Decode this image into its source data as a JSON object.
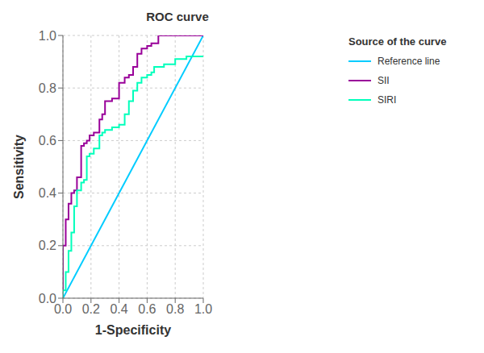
{
  "chart_data": {
    "type": "line",
    "title": "ROC curve",
    "xlabel": "1-Specificity",
    "ylabel": "Sensitivity",
    "legend_title": "Source of the curve",
    "legend": "right",
    "grid": true,
    "xlim": [
      0.0,
      1.0
    ],
    "ylim": [
      0.0,
      1.0
    ],
    "xticks": [
      {
        "value": 0,
        "label": "0.0"
      },
      0.2,
      0.4,
      0.6,
      0.8,
      {
        "value": 1,
        "label": "1.0"
      }
    ],
    "yticks": [
      {
        "value": 0,
        "label": "0.0"
      },
      0.2,
      0.4,
      0.6,
      0.8,
      {
        "value": 1,
        "label": "1.0"
      }
    ],
    "series": [
      {
        "name": "Reference line",
        "color": "#00CCFF",
        "x": [
          0,
          1
        ],
        "values": [
          0,
          1
        ]
      },
      {
        "name": "SII",
        "color": "#990099",
        "x": [
          0.0,
          0.0,
          0.02,
          0.02,
          0.04,
          0.04,
          0.06,
          0.06,
          0.08,
          0.08,
          0.1,
          0.1,
          0.13,
          0.13,
          0.15,
          0.15,
          0.17,
          0.17,
          0.19,
          0.19,
          0.22,
          0.22,
          0.26,
          0.26,
          0.28,
          0.28,
          0.3,
          0.3,
          0.35,
          0.35,
          0.4,
          0.4,
          0.44,
          0.44,
          0.47,
          0.47,
          0.5,
          0.5,
          0.53,
          0.53,
          0.56,
          0.56,
          0.6,
          0.6,
          0.63,
          0.63,
          0.68,
          0.68,
          0.72,
          0.72,
          0.85,
          0.85,
          0.88,
          0.88,
          1.0,
          1.0
        ],
        "values": [
          0.0,
          0.2,
          0.2,
          0.3,
          0.3,
          0.36,
          0.36,
          0.4,
          0.4,
          0.41,
          0.41,
          0.46,
          0.46,
          0.58,
          0.58,
          0.59,
          0.59,
          0.6,
          0.6,
          0.62,
          0.62,
          0.63,
          0.63,
          0.68,
          0.68,
          0.7,
          0.7,
          0.75,
          0.75,
          0.76,
          0.76,
          0.82,
          0.82,
          0.84,
          0.84,
          0.85,
          0.85,
          0.88,
          0.88,
          0.93,
          0.93,
          0.95,
          0.95,
          0.96,
          0.96,
          0.97,
          0.97,
          1.0,
          1.0,
          1.0,
          1.0,
          1.0,
          1.0,
          1.0,
          1.0,
          1.0
        ]
      },
      {
        "name": "SIRI",
        "color": "#00FFBB",
        "x": [
          0.0,
          0.0,
          0.02,
          0.02,
          0.04,
          0.04,
          0.06,
          0.06,
          0.08,
          0.08,
          0.1,
          0.1,
          0.13,
          0.13,
          0.15,
          0.15,
          0.17,
          0.17,
          0.19,
          0.19,
          0.22,
          0.22,
          0.26,
          0.26,
          0.28,
          0.28,
          0.3,
          0.3,
          0.35,
          0.35,
          0.4,
          0.4,
          0.44,
          0.44,
          0.47,
          0.47,
          0.5,
          0.5,
          0.53,
          0.53,
          0.56,
          0.56,
          0.6,
          0.6,
          0.63,
          0.63,
          0.65,
          0.65,
          0.68,
          0.68,
          0.72,
          0.72,
          0.8,
          0.8,
          0.85,
          0.85,
          0.88,
          0.88,
          1.0,
          1.0
        ],
        "values": [
          0.0,
          0.03,
          0.03,
          0.1,
          0.1,
          0.18,
          0.18,
          0.25,
          0.25,
          0.35,
          0.35,
          0.41,
          0.41,
          0.44,
          0.44,
          0.45,
          0.45,
          0.54,
          0.54,
          0.55,
          0.55,
          0.57,
          0.57,
          0.62,
          0.62,
          0.63,
          0.63,
          0.64,
          0.64,
          0.65,
          0.65,
          0.66,
          0.66,
          0.7,
          0.7,
          0.75,
          0.75,
          0.79,
          0.79,
          0.82,
          0.82,
          0.84,
          0.84,
          0.85,
          0.85,
          0.86,
          0.86,
          0.88,
          0.88,
          0.88,
          0.88,
          0.89,
          0.89,
          0.91,
          0.91,
          0.91,
          0.91,
          0.92,
          0.92,
          0.92
        ]
      }
    ]
  }
}
